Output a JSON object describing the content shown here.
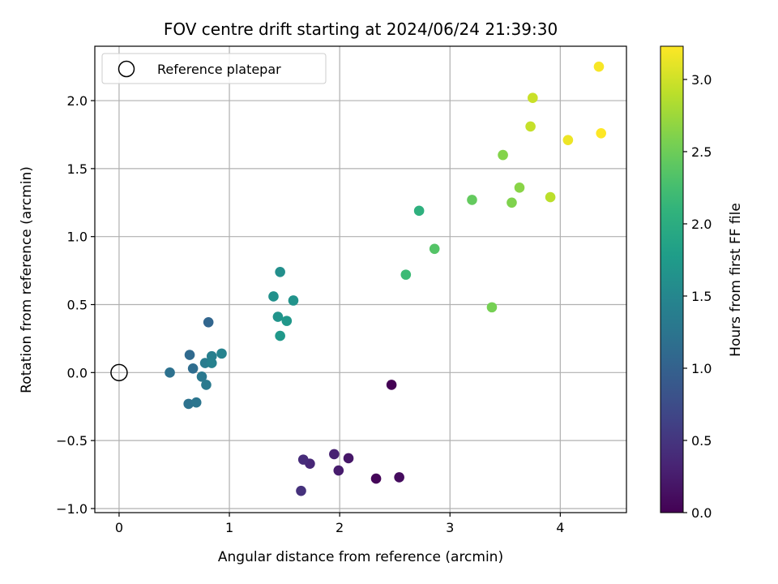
{
  "chart_data": {
    "type": "scatter",
    "title": "FOV centre drift starting at 2024/06/24 21:39:30",
    "xlabel": "Angular distance from reference (arcmin)",
    "ylabel": "Rotation from reference (arcmin)",
    "xlim": [
      -0.22,
      4.6
    ],
    "ylim": [
      -1.03,
      2.4
    ],
    "xticks": [
      0,
      1,
      2,
      3,
      4
    ],
    "xtick_labels": [
      "0",
      "1",
      "2",
      "3",
      "4"
    ],
    "yticks": [
      -1.0,
      -0.5,
      0.0,
      0.5,
      1.0,
      1.5,
      2.0
    ],
    "ytick_labels": [
      "−1.0",
      "−0.5",
      "0.0",
      "0.5",
      "1.0",
      "1.5",
      "2.0"
    ],
    "grid": true,
    "legend": {
      "placement": "top-left",
      "entries": [
        {
          "label": "Reference platepar",
          "marker": "hollow-circle"
        }
      ]
    },
    "reference_point": {
      "x": 0.0,
      "y": 0.0
    },
    "colorbar": {
      "label": "Hours from first FF file",
      "colormap": "viridis",
      "range": [
        0.0,
        3.23
      ],
      "ticks": [
        0.0,
        0.5,
        1.0,
        1.5,
        2.0,
        2.5,
        3.0
      ],
      "tick_labels": [
        "0.0",
        "0.5",
        "1.0",
        "1.5",
        "2.0",
        "2.5",
        "3.0"
      ]
    },
    "points": [
      {
        "x": 2.47,
        "y": -0.09,
        "c": 0.0
      },
      {
        "x": 2.33,
        "y": -0.78,
        "c": 0.05
      },
      {
        "x": 2.54,
        "y": -0.77,
        "c": 0.1
      },
      {
        "x": 2.08,
        "y": -0.63,
        "c": 0.2
      },
      {
        "x": 1.99,
        "y": -0.72,
        "c": 0.25
      },
      {
        "x": 1.95,
        "y": -0.6,
        "c": 0.3
      },
      {
        "x": 1.73,
        "y": -0.67,
        "c": 0.35
      },
      {
        "x": 1.67,
        "y": -0.64,
        "c": 0.4
      },
      {
        "x": 1.65,
        "y": -0.87,
        "c": 0.45
      },
      {
        "x": 0.81,
        "y": 0.37,
        "c": 1.05
      },
      {
        "x": 0.64,
        "y": 0.13,
        "c": 1.1
      },
      {
        "x": 0.67,
        "y": 0.03,
        "c": 1.15
      },
      {
        "x": 0.46,
        "y": 0.0,
        "c": 1.2
      },
      {
        "x": 0.63,
        "y": -0.23,
        "c": 1.22
      },
      {
        "x": 0.7,
        "y": -0.22,
        "c": 1.25
      },
      {
        "x": 0.75,
        "y": -0.03,
        "c": 1.3
      },
      {
        "x": 0.79,
        "y": -0.09,
        "c": 1.32
      },
      {
        "x": 0.78,
        "y": 0.07,
        "c": 1.35
      },
      {
        "x": 0.84,
        "y": 0.12,
        "c": 1.4
      },
      {
        "x": 0.84,
        "y": 0.07,
        "c": 1.42
      },
      {
        "x": 0.93,
        "y": 0.14,
        "c": 1.45
      },
      {
        "x": 1.46,
        "y": 0.74,
        "c": 1.6
      },
      {
        "x": 1.4,
        "y": 0.56,
        "c": 1.62
      },
      {
        "x": 1.58,
        "y": 0.53,
        "c": 1.65
      },
      {
        "x": 1.44,
        "y": 0.41,
        "c": 1.67
      },
      {
        "x": 1.52,
        "y": 0.38,
        "c": 1.7
      },
      {
        "x": 1.46,
        "y": 0.27,
        "c": 1.72
      },
      {
        "x": 2.72,
        "y": 1.19,
        "c": 2.05
      },
      {
        "x": 2.6,
        "y": 0.72,
        "c": 2.2
      },
      {
        "x": 2.86,
        "y": 0.91,
        "c": 2.35
      },
      {
        "x": 3.2,
        "y": 1.27,
        "c": 2.45
      },
      {
        "x": 3.38,
        "y": 0.48,
        "c": 2.55
      },
      {
        "x": 3.56,
        "y": 1.25,
        "c": 2.6
      },
      {
        "x": 3.63,
        "y": 1.36,
        "c": 2.65
      },
      {
        "x": 3.48,
        "y": 1.6,
        "c": 2.62
      },
      {
        "x": 3.91,
        "y": 1.29,
        "c": 2.9
      },
      {
        "x": 3.73,
        "y": 1.81,
        "c": 2.95
      },
      {
        "x": 3.75,
        "y": 2.02,
        "c": 2.97
      },
      {
        "x": 4.07,
        "y": 1.71,
        "c": 3.15
      },
      {
        "x": 4.35,
        "y": 2.25,
        "c": 3.2
      },
      {
        "x": 4.37,
        "y": 1.76,
        "c": 3.23
      }
    ]
  }
}
